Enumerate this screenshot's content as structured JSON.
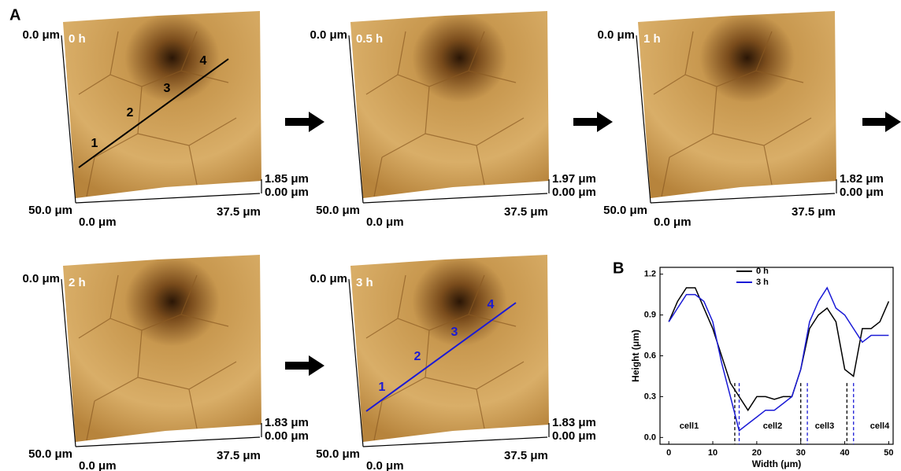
{
  "panel_labels": [
    "A",
    "B"
  ],
  "images": [
    {
      "time": "0 h",
      "top_left": "0.0 μm",
      "bottom_left": "50.0 μm",
      "x_start": "0.0 μm",
      "x_end": "37.5 μm",
      "z_max": "1.85 μm",
      "z_min": "0.00 μm",
      "line_labels": [
        "1",
        "2",
        "3",
        "4"
      ],
      "line_color": "#000000"
    },
    {
      "time": "0.5 h",
      "top_left": "0.0 μm",
      "bottom_left": "50.0 μm",
      "x_start": "0.0 μm",
      "x_end": "37.5 μm",
      "z_max": "1.97 μm",
      "z_min": "0.00 μm"
    },
    {
      "time": "1 h",
      "top_left": "0.0 μm",
      "bottom_left": "50.0 μm",
      "x_start": "0.0 μm",
      "x_end": "37.5 μm",
      "z_max": "1.82 μm",
      "z_min": "0.00 μm"
    },
    {
      "time": "2 h",
      "top_left": "0.0 μm",
      "bottom_left": "50.0 μm",
      "x_start": "0.0 μm",
      "x_end": "37.5 μm",
      "z_max": "1.83 μm",
      "z_min": "0.00 μm"
    },
    {
      "time": "3 h",
      "top_left": "0.0 μm",
      "bottom_left": "50.0 μm",
      "x_start": "0.0 μm",
      "x_end": "37.5 μm",
      "z_max": "1.83 μm",
      "z_min": "0.00 μm",
      "line_labels": [
        "1",
        "2",
        "3",
        "4"
      ],
      "line_color": "#1a1ad6"
    }
  ],
  "chart_data": {
    "type": "line",
    "x_label": "Width (μm)",
    "y_label": "Height (μm)",
    "x": [
      0,
      2,
      4,
      6,
      8,
      10,
      12,
      14,
      16,
      18,
      20,
      22,
      24,
      26,
      28,
      30,
      32,
      34,
      36,
      38,
      40,
      42,
      44,
      46,
      48,
      50
    ],
    "series": [
      {
        "name": "0 h",
        "color": "#000000",
        "values": [
          0.85,
          1.0,
          1.1,
          1.1,
          0.95,
          0.8,
          0.6,
          0.4,
          0.3,
          0.2,
          0.3,
          0.3,
          0.28,
          0.3,
          0.3,
          0.5,
          0.8,
          0.9,
          0.95,
          0.85,
          0.5,
          0.45,
          0.8,
          0.8,
          0.85,
          1.0
        ]
      },
      {
        "name": "3 h",
        "color": "#1a1ad6",
        "values": [
          0.85,
          0.95,
          1.05,
          1.05,
          1.0,
          0.85,
          0.55,
          0.3,
          0.05,
          0.1,
          0.15,
          0.2,
          0.2,
          0.25,
          0.3,
          0.5,
          0.85,
          1.0,
          1.1,
          0.95,
          0.9,
          0.8,
          0.7,
          0.75,
          0.75,
          0.75
        ]
      }
    ],
    "boundaries": [
      {
        "x": 15,
        "color": "#000000"
      },
      {
        "x": 30,
        "color": "#000000"
      },
      {
        "x": 40.5,
        "color": "#000000"
      },
      {
        "x": 16,
        "color": "#1a1ad6"
      },
      {
        "x": 31.5,
        "color": "#1a1ad6"
      },
      {
        "x": 42,
        "color": "#1a1ad6"
      }
    ],
    "annotations": [
      "cell1",
      "cell2",
      "cell3",
      "cell4"
    ],
    "xlim": [
      -2,
      51
    ],
    "ylim": [
      -0.05,
      1.25
    ],
    "xticks": [
      0,
      10,
      20,
      30,
      40,
      50
    ],
    "yticks": [
      {
        "value": 0,
        "label": "0.0"
      },
      {
        "value": 0.3,
        "label": "0.3"
      },
      {
        "value": 0.6,
        "label": "0.6"
      },
      {
        "value": 0.9,
        "label": "0.9"
      },
      {
        "value": 1.2,
        "label": "1.2"
      }
    ],
    "legend": "top"
  }
}
